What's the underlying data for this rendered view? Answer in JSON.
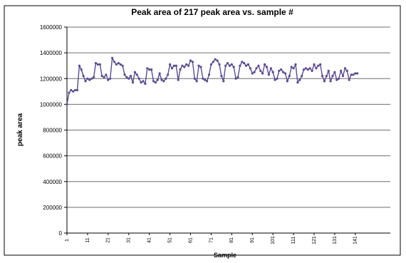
{
  "chart_data": {
    "type": "line",
    "title": "Peak area of 217 peak area vs. sample #",
    "xlabel": "Sample",
    "ylabel": "peak area",
    "ylim": [
      0,
      1600000
    ],
    "yticks": [
      0,
      200000,
      400000,
      600000,
      800000,
      1000000,
      1200000,
      1400000,
      1600000
    ],
    "ytick_labels": [
      "0",
      "200000",
      "400000",
      "600000",
      "800000",
      "1000000",
      "1200000",
      "1400000",
      "1600000"
    ],
    "xticks": [
      1,
      11,
      21,
      31,
      41,
      51,
      61,
      71,
      81,
      91,
      101,
      111,
      121,
      131,
      141
    ],
    "xtick_labels": [
      "1",
      "11",
      "21",
      "31",
      "41",
      "51",
      "61",
      "71",
      "81",
      "91",
      "101",
      "111",
      "121",
      "131",
      "141"
    ],
    "xlim": [
      1,
      158
    ],
    "grid": "horizontal",
    "legend": "none",
    "colors": {
      "series": "#5a4a9a",
      "marker": "#5a4a9a",
      "grid": "#6e6e6e",
      "axis": "#000000",
      "plot_bg": "#ffffff"
    },
    "series": [
      {
        "values": [
          1000000,
          1090000,
          1110000,
          1100000,
          1110000,
          1110000,
          1300000,
          1270000,
          1220000,
          1180000,
          1200000,
          1190000,
          1200000,
          1210000,
          1320000,
          1310000,
          1310000,
          1220000,
          1210000,
          1230000,
          1190000,
          1200000,
          1360000,
          1330000,
          1310000,
          1320000,
          1310000,
          1300000,
          1230000,
          1210000,
          1200000,
          1220000,
          1170000,
          1250000,
          1230000,
          1200000,
          1170000,
          1180000,
          1160000,
          1280000,
          1270000,
          1270000,
          1180000,
          1170000,
          1190000,
          1240000,
          1190000,
          1180000,
          1200000,
          1230000,
          1310000,
          1280000,
          1300000,
          1300000,
          1190000,
          1270000,
          1300000,
          1290000,
          1310000,
          1300000,
          1340000,
          1330000,
          1200000,
          1180000,
          1300000,
          1290000,
          1200000,
          1190000,
          1180000,
          1230000,
          1310000,
          1330000,
          1350000,
          1340000,
          1310000,
          1220000,
          1180000,
          1300000,
          1320000,
          1300000,
          1310000,
          1290000,
          1200000,
          1210000,
          1300000,
          1330000,
          1320000,
          1300000,
          1310000,
          1280000,
          1240000,
          1250000,
          1280000,
          1300000,
          1260000,
          1240000,
          1310000,
          1290000,
          1230000,
          1280000,
          1250000,
          1190000,
          1200000,
          1260000,
          1270000,
          1250000,
          1240000,
          1180000,
          1220000,
          1290000,
          1280000,
          1310000,
          1170000,
          1190000,
          1220000,
          1270000,
          1280000,
          1270000,
          1280000,
          1260000,
          1310000,
          1280000,
          1300000,
          1310000,
          1220000,
          1180000,
          1220000,
          1260000,
          1180000,
          1220000,
          1250000,
          1190000,
          1200000,
          1260000,
          1220000,
          1280000,
          1260000,
          1190000,
          1230000,
          1230000,
          1240000,
          1240000
        ]
      }
    ]
  }
}
